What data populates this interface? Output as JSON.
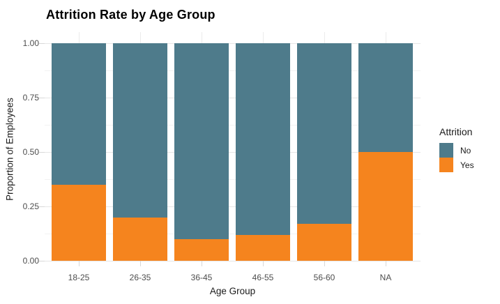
{
  "chart_data": {
    "type": "bar",
    "subtype": "stacked-proportion",
    "title": "Attrition Rate by Age Group",
    "xlabel": "Age Group",
    "ylabel": "Proportion of Employees",
    "categories": [
      "18-25",
      "26-35",
      "36-45",
      "46-55",
      "56-60",
      "NA"
    ],
    "series": [
      {
        "name": "No",
        "color": "#4E7B8B",
        "values": [
          0.65,
          0.8,
          0.9,
          0.88,
          0.83,
          0.5
        ]
      },
      {
        "name": "Yes",
        "color": "#F5841E",
        "values": [
          0.35,
          0.2,
          0.1,
          0.12,
          0.17,
          0.5
        ]
      }
    ],
    "ylim": [
      0,
      1
    ],
    "y_major_ticks": [
      0,
      0.25,
      0.5,
      0.75,
      1.0
    ],
    "y_minor_ticks": [
      0.125,
      0.375,
      0.625,
      0.875
    ],
    "y_tick_labels": [
      "0.00",
      "0.25",
      "0.50",
      "0.75",
      "1.00"
    ],
    "grid": true,
    "legend": {
      "title": "Attrition",
      "position": "right",
      "labels": [
        "No",
        "Yes"
      ]
    }
  }
}
